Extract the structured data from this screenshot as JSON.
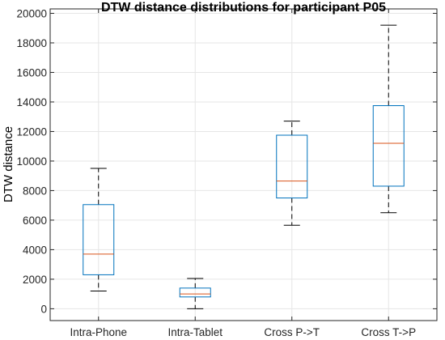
{
  "chart_data": {
    "type": "box",
    "title": "DTW distance distributions for participant P05",
    "xlabel": "",
    "ylabel": "DTW distance",
    "ylim": [
      -800,
      20300
    ],
    "yticks": [
      0,
      2000,
      4000,
      6000,
      8000,
      10000,
      12000,
      14000,
      16000,
      18000,
      20000
    ],
    "grid": true,
    "categories": [
      "Intra-Phone",
      "Intra-Tablet",
      "Cross P->T",
      "Cross T->P"
    ],
    "boxes": [
      {
        "category": "Intra-Phone",
        "whisker_low": 1200,
        "q1": 2300,
        "median": 3700,
        "q3": 7050,
        "whisker_high": 9500
      },
      {
        "category": "Intra-Tablet",
        "whisker_low": 0,
        "q1": 800,
        "median": 1000,
        "q3": 1400,
        "whisker_high": 2050
      },
      {
        "category": "Cross P->T",
        "whisker_low": 5650,
        "q1": 7500,
        "median": 8650,
        "q3": 11750,
        "whisker_high": 12700
      },
      {
        "category": "Cross T->P",
        "whisker_low": 6500,
        "q1": 8300,
        "median": 11200,
        "q3": 13750,
        "whisker_high": 19200
      }
    ],
    "colors": {
      "box": "#0072BD",
      "median": "#D95319",
      "whisker": "#000000",
      "grid": "#e6e6e6",
      "axis": "#262626"
    }
  }
}
